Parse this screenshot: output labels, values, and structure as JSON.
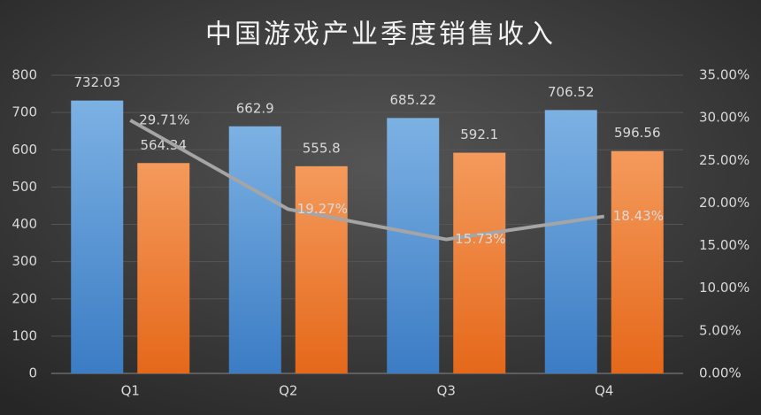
{
  "chart_data": {
    "type": "bar",
    "title": "中国游戏产业季度销售收入",
    "categories": [
      "Q1",
      "Q2",
      "Q3",
      "Q4"
    ],
    "series": [
      {
        "color": "#5b9bd5",
        "values": [
          732.03,
          662.9,
          685.22,
          706.52
        ]
      },
      {
        "color": "#ed7d31",
        "values": [
          564.34,
          555.8,
          592.1,
          596.56
        ]
      },
      {
        "type": "line",
        "axis": "y2",
        "color": "#a5a5a5",
        "values": [
          29.71,
          19.27,
          15.73,
          18.43
        ],
        "value_labels": [
          "29.71%",
          "19.27%",
          "15.73%",
          "18.43%"
        ]
      }
    ],
    "ylim": [
      0,
      800
    ],
    "yticks": [
      0,
      100,
      200,
      300,
      400,
      500,
      600,
      700,
      800
    ],
    "y2lim": [
      0,
      35
    ],
    "y2ticks": [
      {
        "value": 0,
        "label": "0.00%"
      },
      {
        "value": 5,
        "label": "5.00%"
      },
      {
        "value": 10,
        "label": "10.00%"
      },
      {
        "value": 15,
        "label": "15.00%"
      },
      {
        "value": 20,
        "label": "20.00%"
      },
      {
        "value": 25,
        "label": "25.00%"
      },
      {
        "value": 30,
        "label": "30.00%"
      },
      {
        "value": 35,
        "label": "35.00%"
      }
    ],
    "grid": true
  }
}
